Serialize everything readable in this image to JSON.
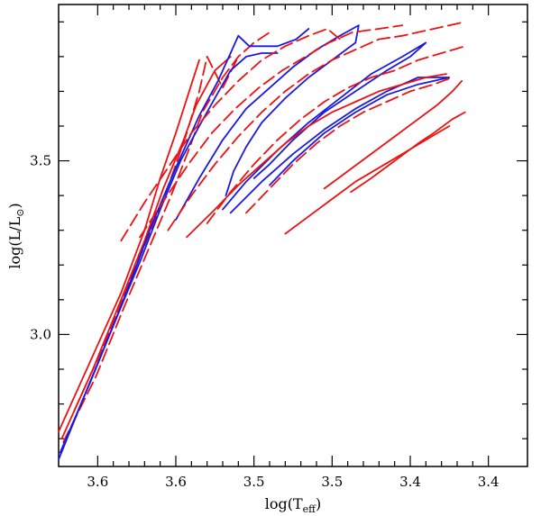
{
  "chart_data": {
    "type": "line",
    "xlabel_main": "log(T",
    "xlabel_sub": "eff",
    "xlabel_close": ")",
    "ylabel_main": "log(L/L",
    "ylabel_sub": "⊙",
    "ylabel_close": ")",
    "xlim": [
      3.65,
      3.35
    ],
    "ylim": [
      2.62,
      3.95
    ],
    "x_ticks": [
      {
        "value": 3.625,
        "label": "3.6"
      },
      {
        "value": 3.575,
        "label": "3.6"
      },
      {
        "value": 3.525,
        "label": "3.5"
      },
      {
        "value": 3.475,
        "label": "3.5"
      },
      {
        "value": 3.425,
        "label": "3.4"
      },
      {
        "value": 3.375,
        "label": "3.4"
      }
    ],
    "y_ticks": [
      {
        "value": 3.0,
        "label": "3.0"
      },
      {
        "value": 3.5,
        "label": "3.5"
      }
    ],
    "colors": {
      "red": "#ee1111",
      "blue": "#1a1adf"
    },
    "series": [
      {
        "color": "red",
        "dash": "solid",
        "points": [
          [
            3.65,
            2.72
          ],
          [
            3.63,
            2.92
          ],
          [
            3.61,
            3.12
          ],
          [
            3.595,
            3.3
          ],
          [
            3.585,
            3.45
          ],
          [
            3.575,
            3.58
          ],
          [
            3.565,
            3.72
          ],
          [
            3.56,
            3.79
          ]
        ]
      },
      {
        "color": "red",
        "dash": "solid",
        "points": [
          [
            3.648,
            2.7
          ],
          [
            3.628,
            2.9
          ],
          [
            3.61,
            3.1
          ],
          [
            3.595,
            3.27
          ],
          [
            3.583,
            3.42
          ],
          [
            3.57,
            3.56
          ],
          [
            3.562,
            3.66
          ],
          [
            3.55,
            3.76
          ],
          [
            3.54,
            3.8
          ]
        ]
      },
      {
        "color": "red",
        "dash": "dashed",
        "points": [
          [
            3.647,
            2.69
          ],
          [
            3.626,
            2.88
          ],
          [
            3.608,
            3.08
          ],
          [
            3.592,
            3.25
          ],
          [
            3.578,
            3.4
          ],
          [
            3.566,
            3.54
          ],
          [
            3.558,
            3.64
          ],
          [
            3.545,
            3.74
          ],
          [
            3.535,
            3.8
          ],
          [
            3.525,
            3.84
          ],
          [
            3.515,
            3.87
          ]
        ]
      },
      {
        "color": "red",
        "dash": "dashed",
        "points": [
          [
            3.64,
            2.78
          ],
          [
            3.622,
            2.96
          ],
          [
            3.605,
            3.15
          ],
          [
            3.59,
            3.31
          ],
          [
            3.578,
            3.45
          ],
          [
            3.568,
            3.58
          ],
          [
            3.56,
            3.7
          ],
          [
            3.555,
            3.8
          ],
          [
            3.545,
            3.71
          ],
          [
            3.535,
            3.8
          ]
        ]
      },
      {
        "color": "blue",
        "dash": "solid",
        "points": [
          [
            3.65,
            2.64
          ],
          [
            3.632,
            2.84
          ],
          [
            3.612,
            3.06
          ],
          [
            3.6,
            3.2
          ],
          [
            3.59,
            3.32
          ],
          [
            3.575,
            3.48
          ],
          [
            3.56,
            3.63
          ],
          [
            3.548,
            3.73
          ],
          [
            3.54,
            3.81
          ],
          [
            3.535,
            3.86
          ],
          [
            3.528,
            3.83
          ],
          [
            3.51,
            3.83
          ],
          [
            3.498,
            3.85
          ],
          [
            3.49,
            3.88
          ]
        ]
      },
      {
        "color": "blue",
        "dash": "solid",
        "points": [
          [
            3.649,
            2.66
          ],
          [
            3.63,
            2.86
          ],
          [
            3.61,
            3.08
          ],
          [
            3.597,
            3.22
          ],
          [
            3.585,
            3.36
          ],
          [
            3.572,
            3.5
          ],
          [
            3.56,
            3.6
          ],
          [
            3.55,
            3.68
          ],
          [
            3.54,
            3.76
          ],
          [
            3.53,
            3.8
          ],
          [
            3.52,
            3.81
          ],
          [
            3.51,
            3.81
          ]
        ]
      },
      {
        "color": "blue",
        "dash": "solid",
        "points": [
          [
            3.575,
            3.33
          ],
          [
            3.56,
            3.45
          ],
          [
            3.545,
            3.56
          ],
          [
            3.53,
            3.65
          ],
          [
            3.515,
            3.71
          ],
          [
            3.5,
            3.77
          ],
          [
            3.485,
            3.82
          ],
          [
            3.47,
            3.86
          ],
          [
            3.458,
            3.89
          ],
          [
            3.46,
            3.84
          ],
          [
            3.475,
            3.79
          ],
          [
            3.49,
            3.74
          ],
          [
            3.505,
            3.68
          ],
          [
            3.52,
            3.61
          ],
          [
            3.53,
            3.54
          ],
          [
            3.538,
            3.47
          ],
          [
            3.543,
            3.4
          ]
        ]
      },
      {
        "color": "blue",
        "dash": "solid",
        "points": [
          [
            3.545,
            3.36
          ],
          [
            3.53,
            3.44
          ],
          [
            3.51,
            3.53
          ],
          [
            3.49,
            3.61
          ],
          [
            3.47,
            3.68
          ],
          [
            3.45,
            3.75
          ],
          [
            3.43,
            3.8
          ],
          [
            3.415,
            3.84
          ],
          [
            3.425,
            3.8
          ],
          [
            3.44,
            3.76
          ],
          [
            3.46,
            3.7
          ],
          [
            3.48,
            3.64
          ],
          [
            3.5,
            3.56
          ],
          [
            3.515,
            3.49
          ],
          [
            3.525,
            3.45
          ]
        ]
      },
      {
        "color": "blue",
        "dash": "solid",
        "points": [
          [
            3.54,
            3.35
          ],
          [
            3.52,
            3.44
          ],
          [
            3.5,
            3.52
          ],
          [
            3.48,
            3.59
          ],
          [
            3.46,
            3.65
          ],
          [
            3.44,
            3.7
          ],
          [
            3.42,
            3.74
          ],
          [
            3.4,
            3.74
          ],
          [
            3.42,
            3.72
          ],
          [
            3.44,
            3.69
          ],
          [
            3.46,
            3.64
          ],
          [
            3.48,
            3.58
          ],
          [
            3.5,
            3.5
          ],
          [
            3.515,
            3.43
          ]
        ]
      },
      {
        "color": "red",
        "dash": "dashed",
        "points": [
          [
            3.61,
            3.27
          ],
          [
            3.595,
            3.38
          ],
          [
            3.58,
            3.48
          ],
          [
            3.565,
            3.58
          ],
          [
            3.55,
            3.66
          ],
          [
            3.535,
            3.73
          ],
          [
            3.52,
            3.79
          ],
          [
            3.505,
            3.83
          ],
          [
            3.49,
            3.86
          ],
          [
            3.478,
            3.88
          ],
          [
            3.47,
            3.85
          ]
        ]
      },
      {
        "color": "red",
        "dash": "dashed",
        "points": [
          [
            3.598,
            3.28
          ],
          [
            3.582,
            3.39
          ],
          [
            3.567,
            3.49
          ],
          [
            3.552,
            3.58
          ],
          [
            3.537,
            3.65
          ],
          [
            3.522,
            3.71
          ],
          [
            3.507,
            3.76
          ],
          [
            3.492,
            3.8
          ],
          [
            3.477,
            3.84
          ],
          [
            3.462,
            3.87
          ],
          [
            3.445,
            3.88
          ],
          [
            3.43,
            3.89
          ]
        ]
      },
      {
        "color": "red",
        "dash": "dashed",
        "points": [
          [
            3.58,
            3.3
          ],
          [
            3.565,
            3.4
          ],
          [
            3.55,
            3.49
          ],
          [
            3.535,
            3.57
          ],
          [
            3.52,
            3.64
          ],
          [
            3.505,
            3.7
          ],
          [
            3.49,
            3.75
          ],
          [
            3.475,
            3.79
          ],
          [
            3.46,
            3.82
          ],
          [
            3.445,
            3.85
          ],
          [
            3.43,
            3.86
          ],
          [
            3.41,
            3.88
          ],
          [
            3.39,
            3.9
          ]
        ]
      },
      {
        "color": "red",
        "dash": "dashed",
        "points": [
          [
            3.555,
            3.32
          ],
          [
            3.54,
            3.41
          ],
          [
            3.525,
            3.49
          ],
          [
            3.51,
            3.56
          ],
          [
            3.495,
            3.62
          ],
          [
            3.48,
            3.67
          ],
          [
            3.465,
            3.71
          ],
          [
            3.45,
            3.74
          ],
          [
            3.435,
            3.76
          ],
          [
            3.42,
            3.79
          ],
          [
            3.405,
            3.81
          ],
          [
            3.39,
            3.83
          ]
        ]
      },
      {
        "color": "red",
        "dash": "dashed",
        "points": [
          [
            3.53,
            3.35
          ],
          [
            3.515,
            3.42
          ],
          [
            3.5,
            3.49
          ],
          [
            3.485,
            3.55
          ],
          [
            3.47,
            3.6
          ],
          [
            3.455,
            3.64
          ],
          [
            3.44,
            3.67
          ],
          [
            3.425,
            3.7
          ],
          [
            3.41,
            3.72
          ],
          [
            3.398,
            3.74
          ]
        ]
      },
      {
        "color": "red",
        "dash": "solid",
        "points": [
          [
            3.568,
            3.28
          ],
          [
            3.55,
            3.36
          ],
          [
            3.535,
            3.43
          ],
          [
            3.52,
            3.49
          ],
          [
            3.505,
            3.55
          ],
          [
            3.49,
            3.6
          ],
          [
            3.475,
            3.64
          ],
          [
            3.46,
            3.67
          ],
          [
            3.445,
            3.7
          ],
          [
            3.43,
            3.72
          ],
          [
            3.415,
            3.74
          ],
          [
            3.402,
            3.75
          ]
        ]
      },
      {
        "color": "red",
        "dash": "solid",
        "points": [
          [
            3.505,
            3.29
          ],
          [
            3.49,
            3.34
          ],
          [
            3.475,
            3.39
          ],
          [
            3.46,
            3.44
          ],
          [
            3.445,
            3.48
          ],
          [
            3.43,
            3.52
          ],
          [
            3.415,
            3.56
          ],
          [
            3.4,
            3.6
          ]
        ]
      },
      {
        "color": "red",
        "dash": "solid",
        "points": [
          [
            3.463,
            3.41
          ],
          [
            3.45,
            3.45
          ],
          [
            3.435,
            3.5
          ],
          [
            3.42,
            3.55
          ],
          [
            3.41,
            3.58
          ],
          [
            3.398,
            3.62
          ],
          [
            3.39,
            3.64
          ]
        ]
      },
      {
        "color": "red",
        "dash": "solid",
        "points": [
          [
            3.48,
            3.42
          ],
          [
            3.465,
            3.47
          ],
          [
            3.45,
            3.52
          ],
          [
            3.435,
            3.57
          ],
          [
            3.42,
            3.62
          ],
          [
            3.408,
            3.66
          ],
          [
            3.398,
            3.7
          ],
          [
            3.392,
            3.73
          ]
        ]
      }
    ]
  }
}
